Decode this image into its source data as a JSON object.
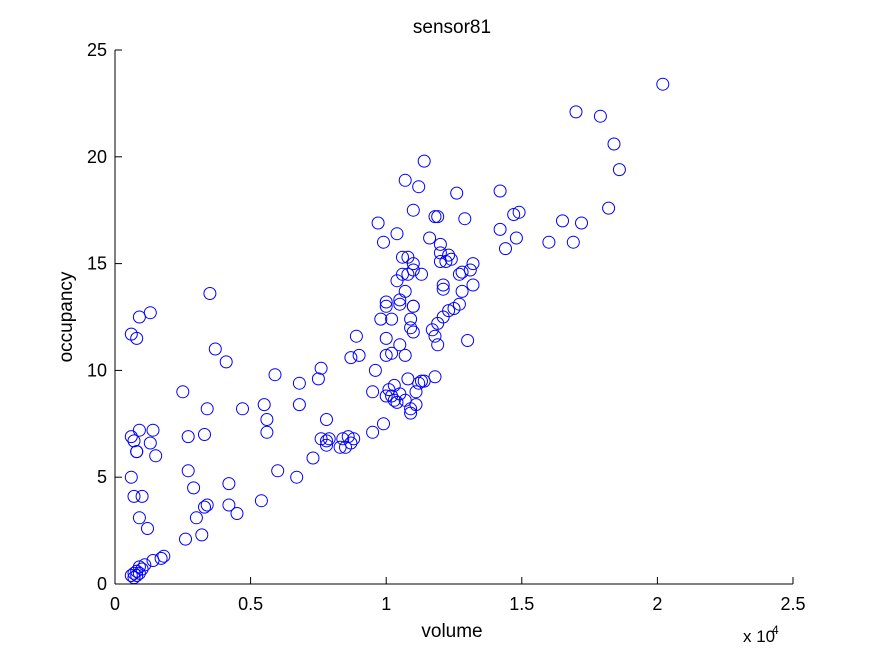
{
  "chart_data": {
    "type": "scatter",
    "title": "sensor81",
    "xlabel": "volume",
    "ylabel": "occupancy",
    "x_exponent_label": "x 10",
    "x_exponent_power": "4",
    "xlim": [
      0,
      2.5
    ],
    "ylim": [
      0,
      25
    ],
    "x_ticks": [
      0,
      0.5,
      1,
      1.5,
      2,
      2.5
    ],
    "x_tick_labels": [
      "0",
      "0.5",
      "1",
      "1.5",
      "2",
      "2.5"
    ],
    "y_ticks": [
      0,
      5,
      10,
      15,
      20,
      25
    ],
    "y_tick_labels": [
      "0",
      "5",
      "10",
      "15",
      "20",
      "25"
    ],
    "grid": false,
    "marker": "circle-open",
    "marker_color": "#0000ff",
    "axis_color": "#000000",
    "points": [
      [
        0.06,
        0.4
      ],
      [
        0.07,
        0.5
      ],
      [
        0.08,
        0.6
      ],
      [
        0.07,
        0.3
      ],
      [
        0.08,
        0.4
      ],
      [
        0.09,
        0.5
      ],
      [
        0.09,
        0.8
      ],
      [
        0.1,
        0.7
      ],
      [
        0.11,
        0.9
      ],
      [
        0.14,
        1.1
      ],
      [
        0.17,
        1.2
      ],
      [
        0.18,
        1.3
      ],
      [
        0.06,
        6.9
      ],
      [
        0.06,
        5.0
      ],
      [
        0.07,
        4.1
      ],
      [
        0.07,
        6.7
      ],
      [
        0.08,
        6.2
      ],
      [
        0.08,
        6.2
      ],
      [
        0.09,
        7.2
      ],
      [
        0.09,
        3.1
      ],
      [
        0.1,
        4.1
      ],
      [
        0.12,
        2.6
      ],
      [
        0.13,
        6.6
      ],
      [
        0.14,
        7.2
      ],
      [
        0.15,
        6.0
      ],
      [
        0.06,
        11.7
      ],
      [
        0.08,
        11.5
      ],
      [
        0.09,
        12.5
      ],
      [
        0.13,
        12.7
      ],
      [
        0.25,
        9.0
      ],
      [
        0.26,
        2.1
      ],
      [
        0.27,
        5.3
      ],
      [
        0.27,
        6.9
      ],
      [
        0.29,
        4.5
      ],
      [
        0.3,
        3.1
      ],
      [
        0.32,
        2.3
      ],
      [
        0.33,
        3.6
      ],
      [
        0.33,
        7.0
      ],
      [
        0.34,
        3.7
      ],
      [
        0.34,
        8.2
      ],
      [
        0.35,
        13.6
      ],
      [
        0.37,
        11.0
      ],
      [
        0.41,
        10.4
      ],
      [
        0.42,
        3.7
      ],
      [
        0.42,
        4.7
      ],
      [
        0.45,
        3.3
      ],
      [
        0.47,
        8.2
      ],
      [
        0.54,
        3.9
      ],
      [
        0.55,
        8.4
      ],
      [
        0.56,
        7.7
      ],
      [
        0.56,
        7.1
      ],
      [
        0.59,
        9.8
      ],
      [
        0.6,
        5.3
      ],
      [
        0.67,
        5.0
      ],
      [
        0.68,
        8.4
      ],
      [
        0.68,
        9.4
      ],
      [
        0.73,
        5.9
      ],
      [
        0.75,
        9.6
      ],
      [
        0.76,
        10.1
      ],
      [
        0.76,
        6.8
      ],
      [
        0.78,
        6.5
      ],
      [
        0.78,
        6.7
      ],
      [
        0.78,
        7.7
      ],
      [
        0.79,
        6.8
      ],
      [
        0.83,
        6.4
      ],
      [
        0.84,
        6.8
      ],
      [
        0.85,
        6.4
      ],
      [
        0.86,
        6.9
      ],
      [
        0.87,
        10.6
      ],
      [
        0.87,
        6.6
      ],
      [
        0.88,
        6.8
      ],
      [
        0.89,
        11.6
      ],
      [
        0.9,
        10.7
      ],
      [
        0.95,
        7.1
      ],
      [
        0.95,
        9.0
      ],
      [
        0.96,
        10.0
      ],
      [
        0.97,
        16.9
      ],
      [
        0.98,
        12.4
      ],
      [
        0.99,
        7.5
      ],
      [
        0.99,
        16.0
      ],
      [
        1.0,
        10.7
      ],
      [
        1.0,
        13.2
      ],
      [
        1.0,
        13.0
      ],
      [
        1.0,
        11.5
      ],
      [
        1.0,
        8.8
      ],
      [
        1.01,
        9.1
      ],
      [
        1.02,
        8.8
      ],
      [
        1.02,
        12.4
      ],
      [
        1.02,
        10.8
      ],
      [
        1.03,
        9.3
      ],
      [
        1.03,
        8.6
      ],
      [
        1.04,
        14.2
      ],
      [
        1.04,
        8.5
      ],
      [
        1.04,
        16.4
      ],
      [
        1.05,
        8.9
      ],
      [
        1.05,
        11.2
      ],
      [
        1.05,
        13.3
      ],
      [
        1.05,
        13.1
      ],
      [
        1.06,
        14.5
      ],
      [
        1.06,
        15.3
      ],
      [
        1.07,
        18.9
      ],
      [
        1.07,
        10.7
      ],
      [
        1.07,
        13.7
      ],
      [
        1.07,
        8.6
      ],
      [
        1.08,
        15.3
      ],
      [
        1.08,
        14.5
      ],
      [
        1.08,
        9.6
      ],
      [
        1.09,
        8.0
      ],
      [
        1.09,
        8.2
      ],
      [
        1.09,
        12.4
      ],
      [
        1.09,
        12.0
      ],
      [
        1.1,
        17.5
      ],
      [
        1.1,
        11.8
      ],
      [
        1.1,
        13.0
      ],
      [
        1.1,
        13.0
      ],
      [
        1.1,
        15.0
      ],
      [
        1.1,
        14.7
      ],
      [
        1.11,
        8.4
      ],
      [
        1.11,
        9.0
      ],
      [
        1.12,
        18.6
      ],
      [
        1.12,
        9.4
      ],
      [
        1.13,
        9.5
      ],
      [
        1.13,
        14.5
      ],
      [
        1.14,
        19.8
      ],
      [
        1.14,
        9.5
      ],
      [
        1.16,
        16.2
      ],
      [
        1.17,
        11.9
      ],
      [
        1.18,
        9.7
      ],
      [
        1.18,
        11.6
      ],
      [
        1.18,
        17.2
      ],
      [
        1.19,
        17.2
      ],
      [
        1.19,
        12.2
      ],
      [
        1.19,
        11.2
      ],
      [
        1.2,
        15.9
      ],
      [
        1.2,
        15.1
      ],
      [
        1.2,
        15.5
      ],
      [
        1.21,
        12.5
      ],
      [
        1.21,
        13.8
      ],
      [
        1.21,
        14.0
      ],
      [
        1.22,
        15.1
      ],
      [
        1.23,
        15.4
      ],
      [
        1.23,
        12.8
      ],
      [
        1.24,
        15.2
      ],
      [
        1.25,
        12.9
      ],
      [
        1.26,
        18.3
      ],
      [
        1.27,
        13.1
      ],
      [
        1.27,
        14.5
      ],
      [
        1.28,
        14.6
      ],
      [
        1.28,
        13.7
      ],
      [
        1.29,
        17.1
      ],
      [
        1.3,
        11.4
      ],
      [
        1.31,
        14.7
      ],
      [
        1.32,
        15.0
      ],
      [
        1.32,
        14.0
      ],
      [
        1.42,
        18.4
      ],
      [
        1.42,
        16.6
      ],
      [
        1.44,
        15.7
      ],
      [
        1.47,
        17.3
      ],
      [
        1.48,
        16.2
      ],
      [
        1.49,
        17.4
      ],
      [
        1.6,
        16.0
      ],
      [
        1.65,
        17.0
      ],
      [
        1.69,
        16.0
      ],
      [
        1.7,
        22.1
      ],
      [
        1.72,
        16.9
      ],
      [
        1.79,
        21.9
      ],
      [
        1.82,
        17.6
      ],
      [
        1.84,
        20.6
      ],
      [
        1.86,
        19.4
      ],
      [
        2.02,
        23.4
      ]
    ]
  }
}
